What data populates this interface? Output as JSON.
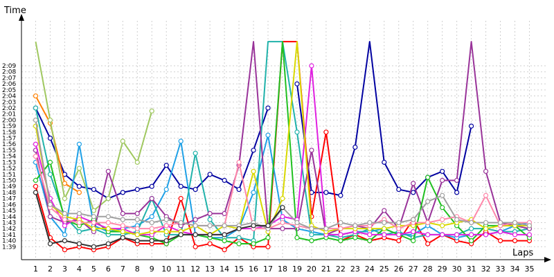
{
  "chart_data": {
    "type": "line",
    "ylabel": "Time",
    "xlabel": "Laps",
    "x": [
      1,
      2,
      3,
      4,
      5,
      6,
      7,
      8,
      9,
      10,
      11,
      12,
      13,
      14,
      15,
      16,
      17,
      18,
      19,
      20,
      21,
      22,
      23,
      24,
      25,
      26,
      27,
      28,
      29,
      30,
      31,
      32,
      33,
      34,
      35
    ],
    "yticks": [
      "1:39",
      "1:40",
      "1:41",
      "1:42",
      "1:43",
      "1:44",
      "1:45",
      "1:46",
      "1:47",
      "1:48",
      "1:49",
      "1:50",
      "1:51",
      "1:52",
      "1:53",
      "1:54",
      "1:55",
      "1:56",
      "1:57",
      "1:58",
      "1:59",
      "2:00",
      "2:01",
      "2:02",
      "2:03",
      "2:04",
      "2:05",
      "2:06",
      "2:07",
      "2:08",
      "2:09"
    ],
    "ylim_seconds": [
      97.5,
      133
    ],
    "grid": true,
    "series": [
      {
        "color": "#0000a0",
        "values": [
          122,
          117,
          111,
          109,
          108.5,
          107,
          108,
          108.5,
          109,
          112.5,
          109,
          108.5,
          111,
          110,
          108.5,
          115,
          122,
          null,
          126,
          108,
          108,
          107.5,
          115.5,
          140,
          113,
          108.5,
          108,
          110.5,
          111.5,
          108,
          119,
          null,
          null,
          null,
          null
        ]
      },
      {
        "color": "#ff0000",
        "values": [
          109,
          100.5,
          98.5,
          99,
          98.5,
          99,
          100.5,
          99.5,
          99.5,
          99.5,
          107,
          99,
          99.5,
          98.5,
          100.5,
          99,
          99,
          140,
          140,
          104,
          118,
          100,
          101,
          100,
          100.5,
          100,
          103.5,
          99.5,
          101,
          100,
          99.5,
          101.5,
          100,
          100,
          100
        ]
      },
      {
        "color": "#ff8000",
        "values": [
          124,
          119.5,
          109.5,
          108,
          null,
          null,
          null,
          null,
          null,
          null,
          null,
          null,
          null,
          null,
          null,
          null,
          null,
          null,
          null,
          null,
          null,
          null,
          null,
          null,
          null,
          null,
          null,
          null,
          null,
          null,
          null,
          null,
          null,
          null,
          null
        ]
      },
      {
        "color": "#a0c860",
        "values": [
          140,
          120,
          107,
          112,
          105,
          107,
          116.5,
          113,
          121.5,
          null,
          null,
          null,
          null,
          null,
          null,
          null,
          null,
          null,
          null,
          null,
          null,
          null,
          null,
          null,
          null,
          null,
          null,
          null,
          null,
          null,
          null,
          null,
          null,
          null,
          null
        ]
      },
      {
        "color": "#1ea0e6",
        "values": [
          113,
          104,
          101,
          116,
          102.5,
          101.5,
          102,
          102.5,
          104,
          108.5,
          116.5,
          101,
          100.5,
          100.5,
          102,
          108,
          117.5,
          103.5,
          102,
          101.5,
          101,
          101,
          101.5,
          101.5,
          102,
          101,
          101,
          102.5,
          101,
          100.5,
          101,
          101,
          101.5,
          102.5,
          103
        ]
      },
      {
        "color": "#20b2aa",
        "values": [
          122,
          111,
          104,
          101.5,
          102,
          101,
          101,
          101.5,
          107,
          101,
          101,
          114.5,
          103.5,
          100.5,
          100.5,
          100,
          140,
          140,
          118,
          101,
          101,
          100.5,
          101,
          102,
          101,
          101.5,
          100.5,
          101,
          101,
          101,
          102,
          102,
          101.5,
          101.5,
          102
        ]
      },
      {
        "color": "#993399",
        "values": [
          115,
          104,
          103,
          103.5,
          101.5,
          111.5,
          104.5,
          104.5,
          107,
          104,
          102.5,
          103.5,
          104.5,
          104.5,
          112.5,
          140,
          102,
          102,
          102,
          115,
          101,
          102,
          102.5,
          102,
          105,
          102,
          109.5,
          103,
          110,
          110,
          140,
          111.5,
          103,
          102.5,
          102
        ]
      },
      {
        "color": "#20c020",
        "values": [
          110,
          113,
          103.5,
          102.5,
          103.5,
          101.5,
          101.5,
          101,
          100.5,
          99.5,
          101,
          101,
          100.5,
          100,
          99.5,
          99.5,
          100.5,
          140,
          100.5,
          100,
          100.5,
          100,
          100.5,
          100,
          102,
          101,
          100,
          110.5,
          105.5,
          102.5,
          100,
          102.5,
          102.5,
          102.5,
          100.5
        ]
      },
      {
        "color": "#e020e0",
        "values": [
          116,
          107,
          102.5,
          104,
          103,
          102,
          102,
          101,
          101,
          102.5,
          101.5,
          101,
          101,
          101,
          102,
          102,
          102.5,
          104,
          103.5,
          129,
          101,
          101,
          101.5,
          101,
          101,
          101,
          101.5,
          101,
          101,
          101,
          101,
          101,
          101.5,
          101,
          101
        ]
      },
      {
        "color": "#d8d800",
        "values": [
          119,
          106,
          104,
          103.5,
          102,
          102,
          101.5,
          101,
          101.5,
          101.5,
          101.5,
          102.5,
          101,
          102.5,
          102,
          111.5,
          101.5,
          107,
          140,
          102.5,
          101.5,
          102,
          102,
          102,
          102,
          102.5,
          102.5,
          103,
          102.5,
          103,
          103.5,
          102,
          102.5,
          102.5,
          102.5
        ]
      },
      {
        "color": "#ff88aa",
        "values": [
          114,
          105.5,
          103.5,
          103,
          103,
          103,
          102.5,
          102,
          102,
          102.5,
          103,
          102.5,
          102.5,
          102.5,
          113,
          102,
          102,
          103,
          102.5,
          102,
          102,
          102,
          102.5,
          102.5,
          103.5,
          102,
          103,
          103,
          103.5,
          104,
          103,
          107.5,
          102.5,
          103,
          103
        ]
      },
      {
        "color": "#a0a0a0",
        "values": [
          120,
          106,
          104.5,
          104.5,
          104,
          104,
          103.5,
          103.5,
          103,
          103.5,
          103,
          102.5,
          102.5,
          102.5,
          102.5,
          103,
          102,
          105.5,
          103,
          102,
          102,
          103,
          102.5,
          103,
          103,
          103,
          103.5,
          106.5,
          107.5,
          103.5,
          103,
          103,
          103,
          103,
          102.5
        ]
      },
      {
        "color": "#303030",
        "values": [
          108,
          99.5,
          100,
          99.5,
          99,
          99.5,
          100.5,
          100,
          100,
          100,
          101,
          101,
          101,
          101,
          102,
          102.5,
          102.5,
          105.5,
          null,
          null,
          null,
          null,
          null,
          null,
          null,
          null,
          null,
          null,
          null,
          null,
          null,
          null,
          null,
          null,
          null
        ]
      }
    ]
  }
}
